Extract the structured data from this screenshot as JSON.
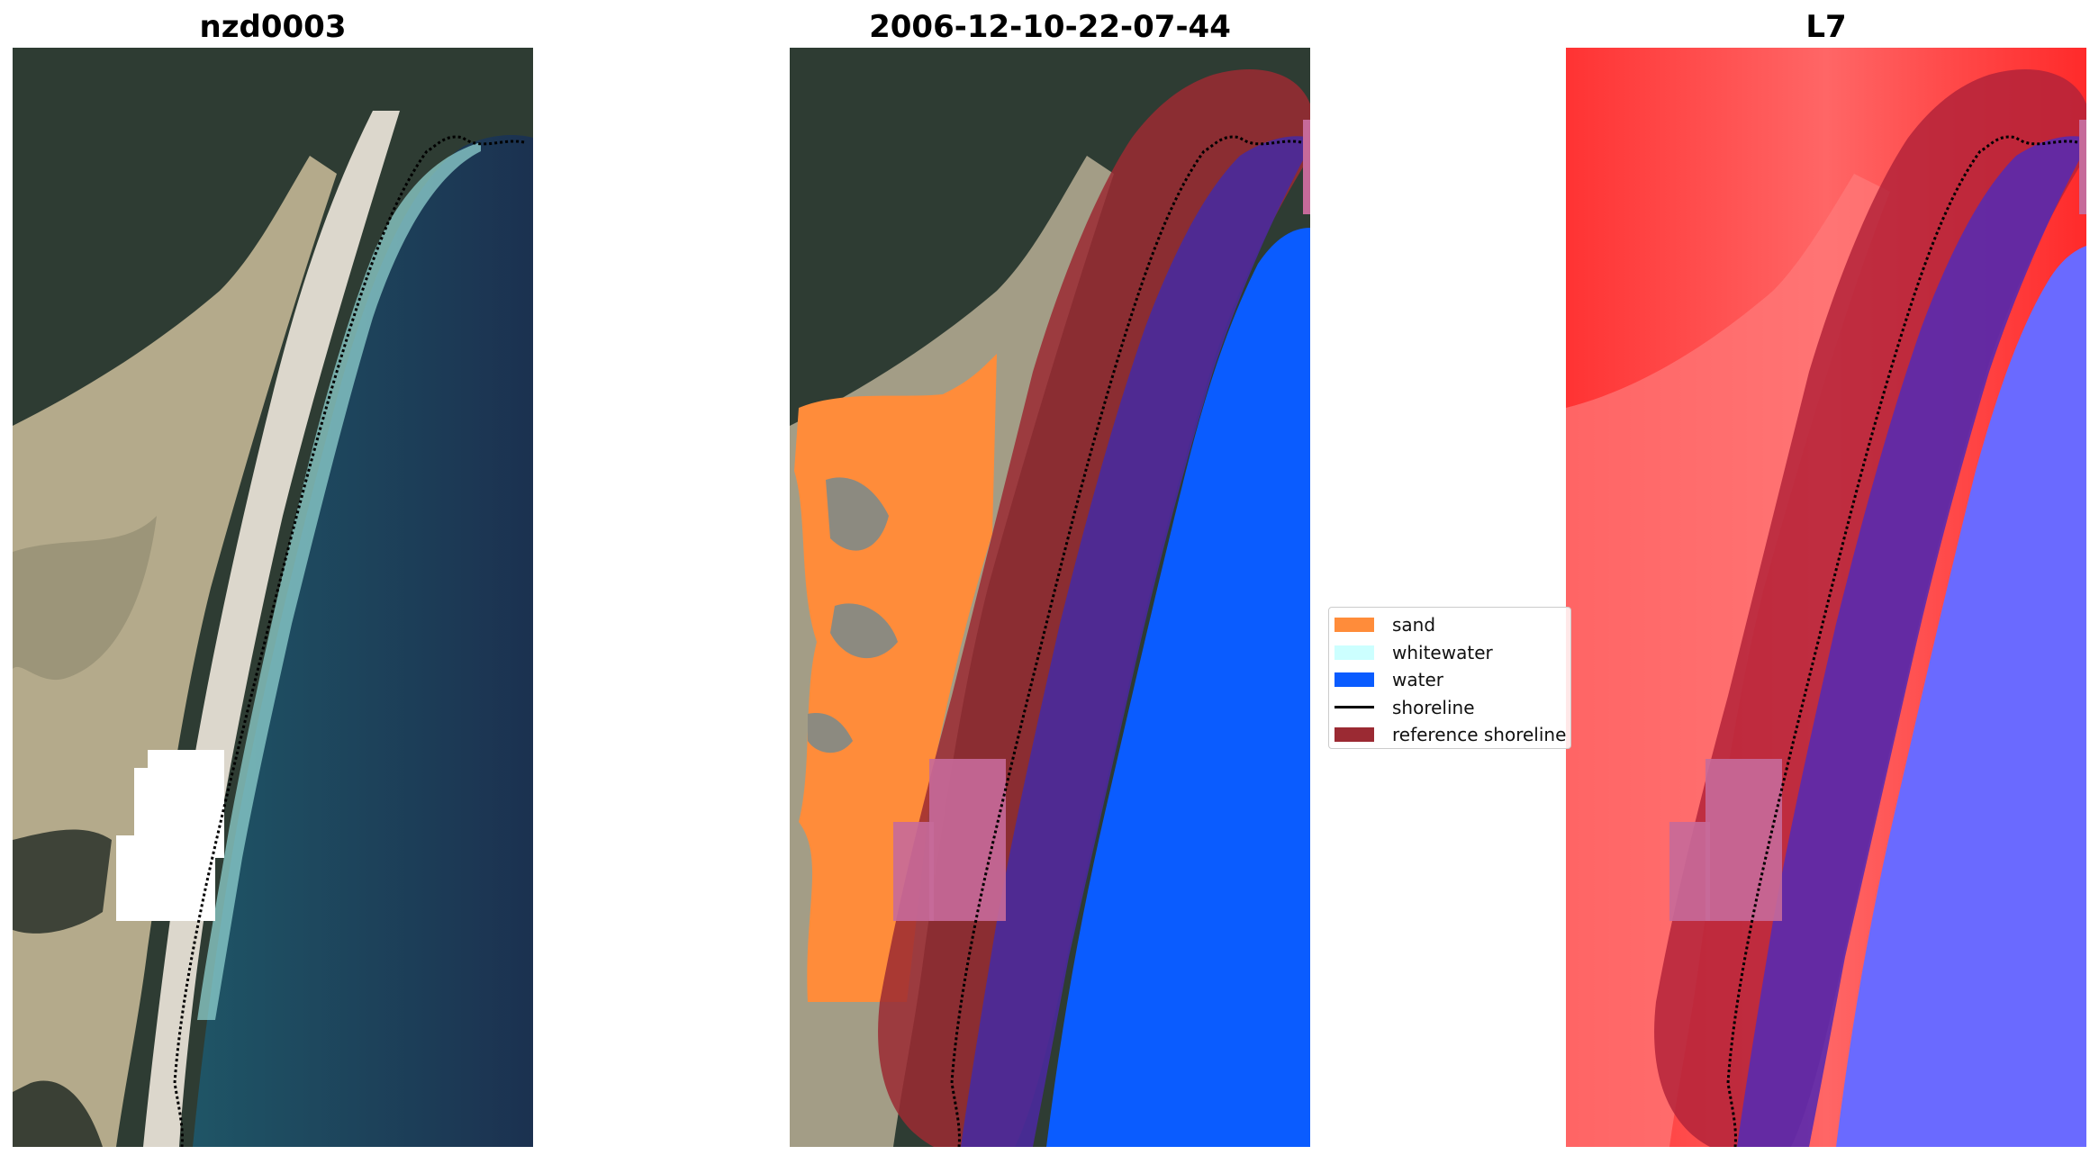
{
  "panels": [
    {
      "title": "nzd0003"
    },
    {
      "title": "2006-12-10-22-07-44"
    },
    {
      "title": "L7"
    }
  ],
  "legend": {
    "items": [
      {
        "label": "sand",
        "color": "#ff8c3a",
        "kind": "patch"
      },
      {
        "label": "whitewater",
        "color": "#ccffff",
        "kind": "patch"
      },
      {
        "label": "water",
        "color": "#0a5cff",
        "kind": "patch"
      },
      {
        "label": "shoreline",
        "color": "#000000",
        "kind": "line"
      },
      {
        "label": "reference shoreline",
        "color": "#9b2a33",
        "kind": "patch"
      }
    ]
  },
  "colors": {
    "land_dark": "#2d3b33",
    "dune": "#b3a98a",
    "beach": "#dcd7cc",
    "ocean": "#1b4a5a",
    "ocean_deep": "#1a3350",
    "surf": "#9ed8d6",
    "sand_class": "#ff8c3a",
    "water_class": "#0a5cff",
    "water_class_dark": "#4a2a9a",
    "ref_band": "#9b2a33",
    "ref_band_light": "#c66a9a",
    "index_land": "#ff1a1a",
    "index_water": "#5a5aff"
  }
}
